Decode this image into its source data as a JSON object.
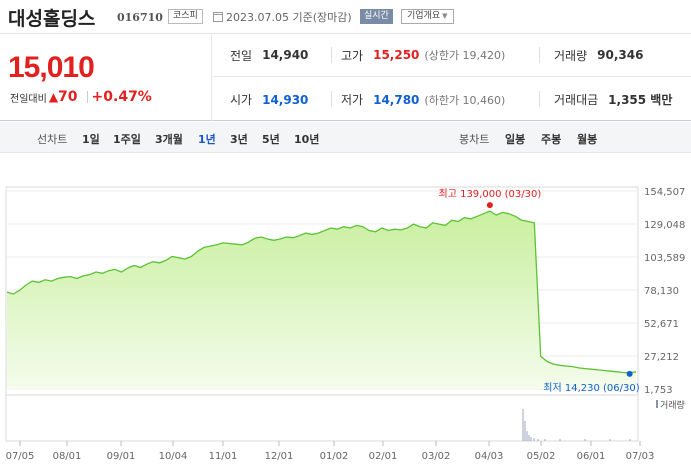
{
  "header": {
    "stock_name": "대성홀딩스",
    "stock_code": "016710",
    "market_badge": "코스피",
    "date_text": "2023.07.05 기준(장마감)",
    "realtime_label": "실시간",
    "company_info_label": "기업개요",
    "company_info_caret": "▼"
  },
  "price": {
    "current": "15,010",
    "change_label": "전일대비",
    "change_icon": "▲",
    "change_value": "70",
    "change_pct": "+0.47%"
  },
  "stats": {
    "prev_close_label": "전일",
    "prev_close": "14,940",
    "high_label": "고가",
    "high": "15,250",
    "upper_limit": "(상한가 19,420)",
    "volume_label": "거래량",
    "volume": "90,346",
    "open_label": "시가",
    "open": "14,930",
    "low_label": "저가",
    "low": "14,780",
    "lower_limit": "(하한가 10,460)",
    "trade_value_label": "거래대금",
    "trade_value": "1,355 백만"
  },
  "period_bar": {
    "line_chart_label": "선차트",
    "periods": [
      "1일",
      "1주일",
      "3개월",
      "1년",
      "3년",
      "5년",
      "10년"
    ],
    "active_period": "1년",
    "candle_chart_label": "봉차트",
    "candle_periods": [
      "일봉",
      "주봉",
      "월봉"
    ]
  },
  "colors": {
    "up": "#e12020",
    "down": "#1060d0",
    "chart_line": "#5cc234",
    "chart_fill": "#c9ef9f"
  },
  "chart_data": {
    "type": "area",
    "y_ticks": [
      "154,507",
      "129,048",
      "103,589",
      "78,130",
      "52,671",
      "27,212",
      "1,753"
    ],
    "ylim": [
      1753,
      154507
    ],
    "x_ticks": [
      "07/05",
      "08/01",
      "09/01",
      "10/04",
      "11/01",
      "12/01",
      "01/02",
      "02/01",
      "03/02",
      "04/03",
      "05/02",
      "06/01",
      "07/03"
    ],
    "high_annotation": "최고 139,000 (03/30)",
    "low_annotation": "최저 14,230 (06/30)",
    "volume_label": "거래량",
    "series": [
      {
        "values": [
          76500,
          75000,
          78000,
          82000,
          85000,
          84000,
          86000,
          85000,
          87000,
          88000,
          88500,
          87000,
          89000,
          90000,
          92000,
          91000,
          93000,
          94000,
          92000,
          95000,
          97000,
          95500,
          98000,
          100000,
          99000,
          101000,
          104000,
          103000,
          102000,
          104000,
          108000,
          111000,
          112000,
          113000,
          114500,
          114000,
          113500,
          113000,
          115000,
          118000,
          119000,
          117500,
          116500,
          117500,
          119000,
          118500,
          120000,
          122000,
          121000,
          122000,
          124000,
          126000,
          125000,
          127000,
          126000,
          128000,
          127000,
          124000,
          123000,
          126000,
          124000,
          125000,
          124500,
          126000,
          129000,
          127000,
          126000,
          130000,
          129000,
          128000,
          132000,
          131000,
          134000,
          133000,
          135000,
          137000,
          139000,
          136000,
          138000,
          137000,
          135000,
          132000,
          131000,
          130000,
          27000,
          23000,
          21000,
          20000,
          19500,
          19000,
          18000,
          17500,
          17000,
          16500,
          16000,
          15500,
          15000,
          14500,
          14230,
          15010
        ]
      }
    ]
  }
}
